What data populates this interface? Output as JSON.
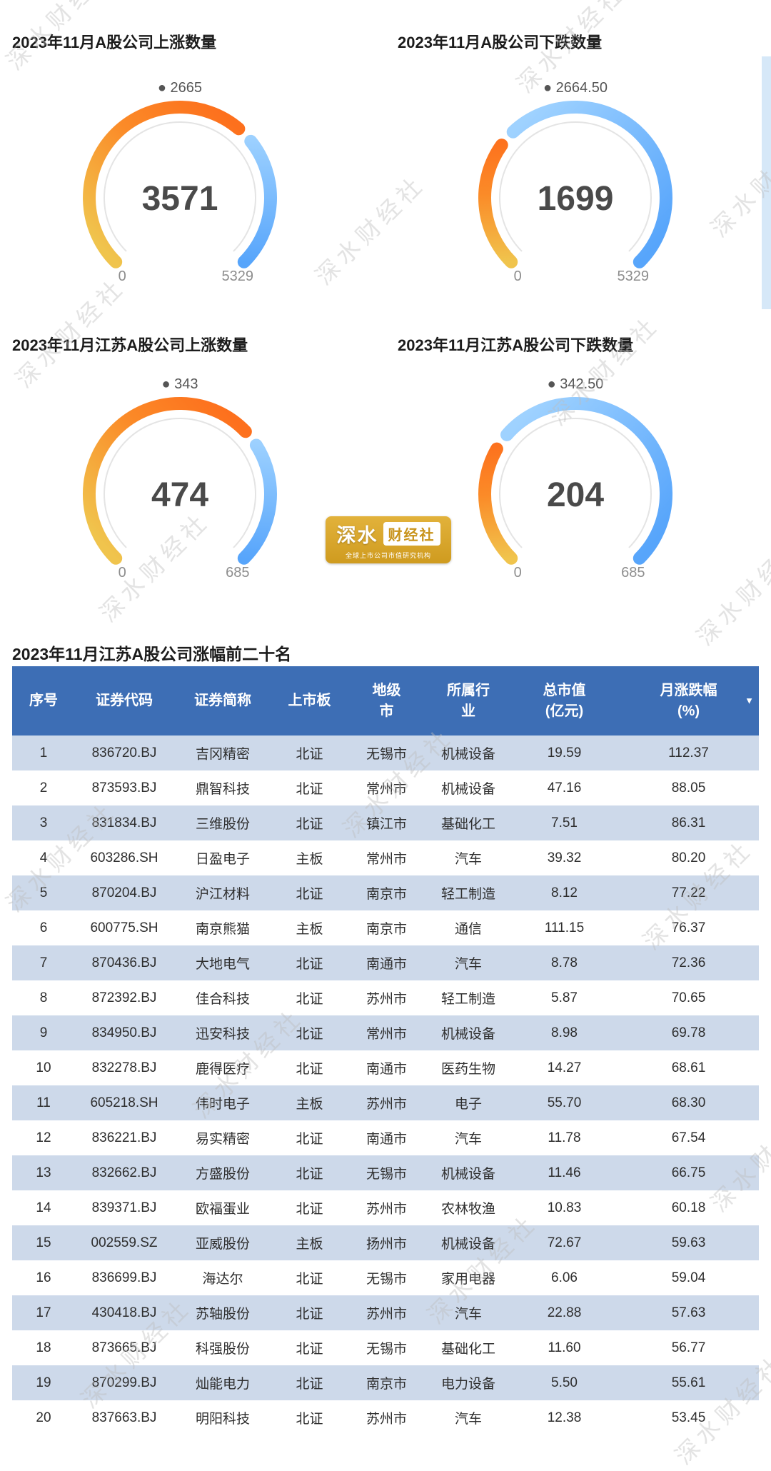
{
  "page": {
    "background": "#ffffff"
  },
  "watermark": {
    "text": "深水财经社"
  },
  "logo": {
    "name_left": "深水",
    "name_right": "财经社",
    "subtitle": "全球上市公司市值研究机构"
  },
  "colors": {
    "header_bg": "#3d6eb5",
    "row_alt_bg": "#cdd9ea",
    "gauge_gold_start": "#f0c44d",
    "gauge_gold_mid": "#fb8b28",
    "gauge_gold_end": "#fd701d",
    "gauge_blue_start": "#9fd2ff",
    "gauge_blue_end": "#57a5fb"
  },
  "chart_data": [
    {
      "type": "gauge",
      "title": "2023年11月A股公司上涨数量",
      "value": 3571,
      "min": 0,
      "max": 5329,
      "marker_label": "2665"
    },
    {
      "type": "gauge",
      "title": "2023年11月A股公司下跌数量",
      "value": 1699,
      "min": 0,
      "max": 5329,
      "marker_label": "2664.50"
    },
    {
      "type": "gauge",
      "title": "2023年11月江苏A股公司上涨数量",
      "value": 474,
      "min": 0,
      "max": 685,
      "marker_label": "343"
    },
    {
      "type": "gauge",
      "title": "2023年11月江苏A股公司下跌数量",
      "value": 204,
      "min": 0,
      "max": 685,
      "marker_label": "342.50"
    },
    {
      "type": "table",
      "title": "2023年11月江苏A股公司涨幅前二十名",
      "columns": [
        "序号",
        "证券代码",
        "证券简称",
        "上市板",
        "地级\n市",
        "所属行\n业",
        "总市值\n(亿元)",
        "月涨跌幅\n(%)"
      ],
      "sort_column_index": 7,
      "sort_icon": "▼",
      "rows": [
        [
          "1",
          "836720.BJ",
          "吉冈精密",
          "北证",
          "无锡市",
          "机械设备",
          "19.59",
          "112.37"
        ],
        [
          "2",
          "873593.BJ",
          "鼎智科技",
          "北证",
          "常州市",
          "机械设备",
          "47.16",
          "88.05"
        ],
        [
          "3",
          "831834.BJ",
          "三维股份",
          "北证",
          "镇江市",
          "基础化工",
          "7.51",
          "86.31"
        ],
        [
          "4",
          "603286.SH",
          "日盈电子",
          "主板",
          "常州市",
          "汽车",
          "39.32",
          "80.20"
        ],
        [
          "5",
          "870204.BJ",
          "沪江材料",
          "北证",
          "南京市",
          "轻工制造",
          "8.12",
          "77.22"
        ],
        [
          "6",
          "600775.SH",
          "南京熊猫",
          "主板",
          "南京市",
          "通信",
          "111.15",
          "76.37"
        ],
        [
          "7",
          "870436.BJ",
          "大地电气",
          "北证",
          "南通市",
          "汽车",
          "8.78",
          "72.36"
        ],
        [
          "8",
          "872392.BJ",
          "佳合科技",
          "北证",
          "苏州市",
          "轻工制造",
          "5.87",
          "70.65"
        ],
        [
          "9",
          "834950.BJ",
          "迅安科技",
          "北证",
          "常州市",
          "机械设备",
          "8.98",
          "69.78"
        ],
        [
          "10",
          "832278.BJ",
          "鹿得医疗",
          "北证",
          "南通市",
          "医药生物",
          "14.27",
          "68.61"
        ],
        [
          "11",
          "605218.SH",
          "伟时电子",
          "主板",
          "苏州市",
          "电子",
          "55.70",
          "68.30"
        ],
        [
          "12",
          "836221.BJ",
          "易实精密",
          "北证",
          "南通市",
          "汽车",
          "11.78",
          "67.54"
        ],
        [
          "13",
          "832662.BJ",
          "方盛股份",
          "北证",
          "无锡市",
          "机械设备",
          "11.46",
          "66.75"
        ],
        [
          "14",
          "839371.BJ",
          "欧福蛋业",
          "北证",
          "苏州市",
          "农林牧渔",
          "10.83",
          "60.18"
        ],
        [
          "15",
          "002559.SZ",
          "亚威股份",
          "主板",
          "扬州市",
          "机械设备",
          "72.67",
          "59.63"
        ],
        [
          "16",
          "836699.BJ",
          "海达尔",
          "北证",
          "无锡市",
          "家用电器",
          "6.06",
          "59.04"
        ],
        [
          "17",
          "430418.BJ",
          "苏轴股份",
          "北证",
          "苏州市",
          "汽车",
          "22.88",
          "57.63"
        ],
        [
          "18",
          "873665.BJ",
          "科强股份",
          "北证",
          "无锡市",
          "基础化工",
          "11.60",
          "56.77"
        ],
        [
          "19",
          "870299.BJ",
          "灿能电力",
          "北证",
          "南京市",
          "电力设备",
          "5.50",
          "55.61"
        ],
        [
          "20",
          "837663.BJ",
          "明阳科技",
          "北证",
          "苏州市",
          "汽车",
          "12.38",
          "53.45"
        ]
      ]
    }
  ]
}
